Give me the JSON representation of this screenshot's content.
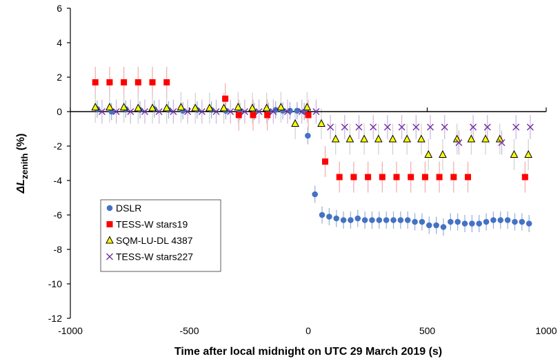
{
  "chart_data": {
    "type": "scatter",
    "xlabel": "Time after local midnight on UTC 29 March 2019 (s)",
    "ylabel_main": "ΔL",
    "ylabel_sub": "zenith",
    "ylabel_unit": "(%)",
    "xlim": [
      -1000,
      1000
    ],
    "ylim": [
      -12,
      6
    ],
    "x_ticks": [
      -1000,
      -500,
      0,
      500,
      1000
    ],
    "y_ticks": [
      -12,
      -10,
      -8,
      -6,
      -4,
      -2,
      0,
      2,
      4,
      6
    ],
    "grid": false,
    "legend_position": "lower-left",
    "series": [
      {
        "name": "DSLR",
        "marker": "circle",
        "color": "#4472c4",
        "error_color": "#9aaad6",
        "x": [
          -887,
          -827,
          -767,
          -707,
          -647,
          -587,
          -527,
          -467,
          -407,
          -347,
          -287,
          -227,
          -167,
          -137,
          -107,
          -77,
          -47,
          -17,
          -2,
          28,
          58,
          88,
          118,
          148,
          178,
          208,
          238,
          268,
          298,
          328,
          358,
          388,
          418,
          448,
          478,
          508,
          538,
          568,
          598,
          628,
          658,
          688,
          718,
          748,
          778,
          808,
          838,
          868,
          898,
          928
        ],
        "y": [
          0.15,
          0,
          0.15,
          0.1,
          0.15,
          0.1,
          0.05,
          0.1,
          0.1,
          0.05,
          0,
          0,
          0,
          0.1,
          0.05,
          0.05,
          0.05,
          0,
          -1.4,
          -4.8,
          -6,
          -6.1,
          -6.2,
          -6.3,
          -6.3,
          -6.2,
          -6.3,
          -6.3,
          -6.3,
          -6.3,
          -6.3,
          -6.3,
          -6.3,
          -6.4,
          -6.4,
          -6.6,
          -6.6,
          -6.7,
          -6.4,
          -6.4,
          -6.5,
          -6.5,
          -6.5,
          -6.4,
          -6.3,
          -6.3,
          -6.3,
          -6.4,
          -6.4,
          -6.5
        ],
        "error": 0.5
      },
      {
        "name": "TESS-W stars19",
        "marker": "square",
        "color": "#ff0000",
        "error_color": "#f4a9a9",
        "x": [
          -895,
          -835,
          -775,
          -715,
          -655,
          -595,
          -349,
          -292,
          -232,
          -172,
          0,
          71,
          131,
          191,
          251,
          311,
          371,
          431,
          491,
          551,
          611,
          671,
          911
        ],
        "y": [
          1.7,
          1.7,
          1.7,
          1.7,
          1.7,
          1.7,
          0.75,
          -0.2,
          -0.2,
          -0.2,
          -0.2,
          -2.9,
          -3.8,
          -3.8,
          -3.8,
          -3.8,
          -3.8,
          -3.8,
          -3.8,
          -3.8,
          -3.8,
          -3.8,
          -3.8
        ],
        "error": 0.9
      },
      {
        "name": "SQM-LU-DL 4387",
        "marker": "triangle",
        "color": "#ffff00",
        "error_color": "#cfcfcf",
        "x": [
          -895,
          -835,
          -775,
          -715,
          -655,
          -595,
          -535,
          -475,
          -415,
          -355,
          -295,
          -235,
          -175,
          -115,
          -55,
          -5,
          55,
          115,
          175,
          235,
          295,
          355,
          415,
          475,
          505,
          565,
          625,
          685,
          745,
          805,
          865,
          925
        ],
        "y": [
          0.25,
          0.25,
          0.25,
          0.2,
          0.2,
          0.2,
          0.25,
          0.2,
          0.2,
          0.2,
          0.25,
          0.2,
          0.2,
          0.25,
          -0.7,
          0.25,
          -0.7,
          -1.6,
          -1.6,
          -1.6,
          -1.6,
          -1.6,
          -1.6,
          -1.6,
          -2.5,
          -2.5,
          -1.6,
          -1.6,
          -1.6,
          -1.6,
          -2.5,
          -2.5
        ],
        "error": 0.9
      },
      {
        "name": "TESS-W stars227",
        "marker": "cross",
        "color": "#7030a0",
        "error_color": "#c9b3dc",
        "x": [
          -867,
          -807,
          -747,
          -687,
          -627,
          -567,
          -507,
          -447,
          -387,
          -327,
          -267,
          -207,
          -147,
          -87,
          -27,
          33,
          93,
          153,
          213,
          273,
          333,
          393,
          453,
          513,
          573,
          633,
          693,
          753,
          813,
          873,
          933
        ],
        "y": [
          0,
          0,
          0,
          0,
          0,
          0,
          0,
          0,
          0,
          0,
          0,
          0,
          0,
          0,
          0,
          0,
          -0.9,
          -0.9,
          -0.9,
          -0.9,
          -0.9,
          -0.9,
          -0.9,
          -0.9,
          -0.9,
          -1.8,
          -0.9,
          -0.9,
          -1.8,
          -0.9,
          -0.9
        ],
        "error": 0.7
      }
    ]
  }
}
